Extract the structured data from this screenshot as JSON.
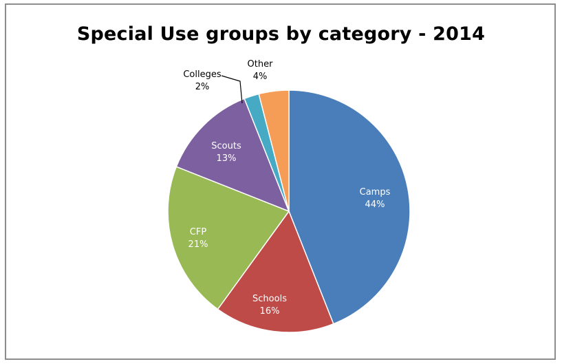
{
  "chart_data": {
    "type": "pie",
    "title": "Special Use groups by category - 2014",
    "legend": "none",
    "slices": [
      {
        "name": "Camps",
        "pct_label": "44%",
        "value": 44,
        "color": "#4A7EBB",
        "label_color": "#ffffff"
      },
      {
        "name": "Schools",
        "pct_label": "16%",
        "value": 16,
        "color": "#BE4B48",
        "label_color": "#ffffff"
      },
      {
        "name": "CFP",
        "pct_label": "21%",
        "value": 21,
        "color": "#98B954",
        "label_color": "#ffffff"
      },
      {
        "name": "Scouts",
        "pct_label": "13%",
        "value": 13,
        "color": "#7D60A0",
        "label_color": "#ffffff"
      },
      {
        "name": "Colleges",
        "pct_label": "2%",
        "value": 2,
        "color": "#46AAC5",
        "label_color": "#000000"
      },
      {
        "name": "Other",
        "pct_label": "4%",
        "value": 4,
        "color": "#F59D56",
        "label_color": "#000000"
      }
    ]
  }
}
